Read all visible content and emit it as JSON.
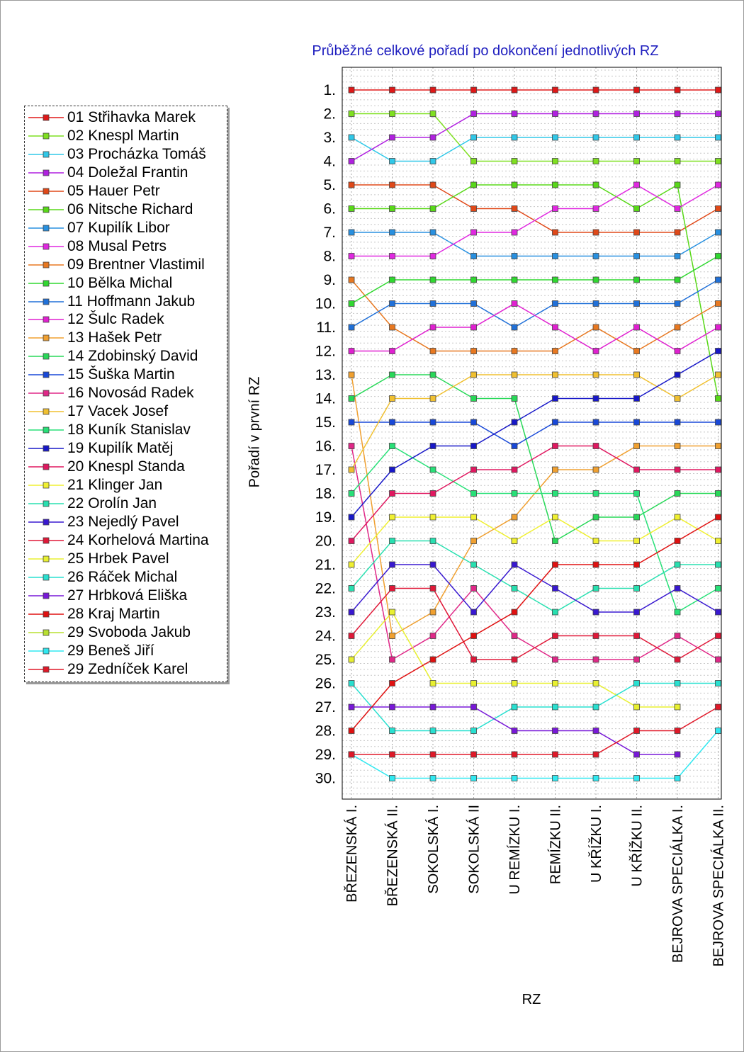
{
  "chart_data": {
    "type": "line",
    "title": "Průběžné celkové pořadí po dokončení jednotlivých RZ",
    "xlabel": "RZ",
    "ylabel": "Pořadí v první RZ",
    "categories": [
      "BŘEZENSKÁ I.",
      "BŘEZENSKÁ II.",
      "SOKOLSKÁ I.",
      "SOKOLSKÁ II",
      "U REMÍZKU I.",
      "REMÍZKU II.",
      "U KŘÍŽKU I.",
      "U KŘÍŽKU II.",
      "BEJROVA SPECIÁLKA I.",
      "BEJROVA SPECIÁLKA II."
    ],
    "y_ticks": [
      "1.",
      "2.",
      "3.",
      "4.",
      "5.",
      "6.",
      "7.",
      "8.",
      "9.",
      "10.",
      "11.",
      "12.",
      "13.",
      "14.",
      "15.",
      "16.",
      "17.",
      "18.",
      "19.",
      "20.",
      "21.",
      "22.",
      "23.",
      "24.",
      "25.",
      "26.",
      "27.",
      "28.",
      "29.",
      "30."
    ],
    "ylim": [
      1,
      30
    ],
    "y_inverted": true,
    "grid": true,
    "legend_position": "left",
    "series": [
      {
        "name": "01 Střihavka Marek",
        "color": "#e01818",
        "values": [
          1,
          1,
          1,
          1,
          1,
          1,
          1,
          1,
          1,
          1
        ]
      },
      {
        "name": "02 Knespl Martin",
        "color": "#7fe020",
        "values": [
          2,
          2,
          2,
          4,
          4,
          4,
          4,
          4,
          4,
          4
        ]
      },
      {
        "name": "03 Procházka Tomáš",
        "color": "#30c8e8",
        "values": [
          3,
          4,
          4,
          3,
          3,
          3,
          3,
          3,
          3,
          3
        ]
      },
      {
        "name": "04 Doležal Frantin",
        "color": "#b020e0",
        "values": [
          4,
          3,
          3,
          2,
          2,
          2,
          2,
          2,
          2,
          2
        ]
      },
      {
        "name": "05 Hauer Petr",
        "color": "#e04818",
        "values": [
          5,
          5,
          5,
          6,
          6,
          7,
          7,
          7,
          7,
          6
        ]
      },
      {
        "name": "06 Nitsche Richard",
        "color": "#58d818",
        "values": [
          6,
          6,
          6,
          5,
          5,
          5,
          5,
          6,
          5,
          14
        ]
      },
      {
        "name": "07 Kupilík Libor",
        "color": "#2890e0",
        "values": [
          7,
          7,
          7,
          8,
          8,
          8,
          8,
          8,
          8,
          7
        ]
      },
      {
        "name": "08 Musal Petrs",
        "color": "#e028e0",
        "values": [
          8,
          8,
          8,
          7,
          7,
          6,
          6,
          5,
          6,
          5
        ]
      },
      {
        "name": "09 Brentner Vlastimil",
        "color": "#e87820",
        "values": [
          9,
          11,
          12,
          12,
          12,
          12,
          11,
          12,
          11,
          10
        ]
      },
      {
        "name": "10 Bělka Michal",
        "color": "#30d830",
        "values": [
          10,
          9,
          9,
          9,
          9,
          9,
          9,
          9,
          9,
          8
        ]
      },
      {
        "name": "11 Hoffmann Jakub",
        "color": "#2070d8",
        "values": [
          11,
          10,
          10,
          10,
          11,
          10,
          10,
          10,
          10,
          9
        ]
      },
      {
        "name": "12 Šulc Radek",
        "color": "#e020d0",
        "values": [
          12,
          12,
          11,
          11,
          10,
          11,
          12,
          11,
          12,
          11
        ]
      },
      {
        "name": "13 Hašek Petr",
        "color": "#f0a030",
        "values": [
          13,
          24,
          23,
          20,
          19,
          17,
          17,
          16,
          16,
          16
        ]
      },
      {
        "name": "14 Zdobinský David",
        "color": "#28d858",
        "values": [
          14,
          13,
          13,
          14,
          14,
          20,
          19,
          19,
          18,
          18
        ]
      },
      {
        "name": "15 Šuška Martin",
        "color": "#1848d8",
        "values": [
          15,
          15,
          15,
          15,
          16,
          15,
          15,
          15,
          15,
          15
        ]
      },
      {
        "name": "16 Novosád Radek",
        "color": "#e02888",
        "values": [
          16,
          25,
          24,
          22,
          24,
          25,
          25,
          25,
          24,
          25
        ]
      },
      {
        "name": "17 Vacek Josef",
        "color": "#f0c030",
        "values": [
          17,
          14,
          14,
          13,
          13,
          13,
          13,
          13,
          14,
          13
        ]
      },
      {
        "name": "18 Kuník Stanislav",
        "color": "#28e078",
        "values": [
          18,
          16,
          17,
          18,
          18,
          18,
          18,
          18,
          23,
          22
        ]
      },
      {
        "name": "19 Kupilík Matěj",
        "color": "#1818c8",
        "values": [
          19,
          17,
          16,
          16,
          15,
          14,
          14,
          14,
          13,
          12
        ]
      },
      {
        "name": "20 Knespl Standa",
        "color": "#e01860",
        "values": [
          20,
          18,
          18,
          17,
          17,
          16,
          16,
          17,
          17,
          17
        ]
      },
      {
        "name": "21 Klinger Jan",
        "color": "#f0f030",
        "values": [
          21,
          19,
          19,
          19,
          20,
          19,
          20,
          20,
          19,
          20
        ]
      },
      {
        "name": "22 Orolín Jan",
        "color": "#28e0b0",
        "values": [
          22,
          20,
          20,
          21,
          22,
          23,
          22,
          22,
          21,
          21
        ]
      },
      {
        "name": "23 Nejedlý Pavel",
        "color": "#3818d0",
        "values": [
          23,
          21,
          21,
          23,
          21,
          22,
          23,
          23,
          22,
          23
        ]
      },
      {
        "name": "24 Korhelová Martina",
        "color": "#e01838",
        "values": [
          24,
          22,
          22,
          25,
          25,
          24,
          24,
          24,
          25,
          24
        ]
      },
      {
        "name": "25 Hrbek Pavel",
        "color": "#e8f030",
        "values": [
          25,
          23,
          26,
          26,
          26,
          26,
          26,
          27,
          27,
          null
        ]
      },
      {
        "name": "26 Ráček Michal",
        "color": "#28e0d0",
        "values": [
          26,
          28,
          28,
          28,
          27,
          27,
          27,
          26,
          26,
          26
        ]
      },
      {
        "name": "27 Hrbková Eliška",
        "color": "#7818d8",
        "values": [
          27,
          27,
          27,
          27,
          28,
          28,
          28,
          29,
          29,
          null
        ]
      },
      {
        "name": "28 Kraj Martin",
        "color": "#e01010",
        "values": [
          28,
          26,
          25,
          24,
          23,
          21,
          21,
          21,
          20,
          19
        ]
      },
      {
        "name": "29 Svoboda Jakub",
        "color": "#b8e030",
        "values": [
          29,
          null,
          null,
          null,
          null,
          null,
          null,
          null,
          null,
          null
        ]
      },
      {
        "name": "29 Beneš Jiří",
        "color": "#30e8f0",
        "values": [
          29,
          30,
          30,
          30,
          30,
          30,
          30,
          30,
          30,
          28
        ]
      },
      {
        "name": "29 Zedníček Karel",
        "color": "#e01828",
        "values": [
          29,
          29,
          29,
          29,
          29,
          29,
          29,
          28,
          28,
          27
        ]
      }
    ]
  }
}
